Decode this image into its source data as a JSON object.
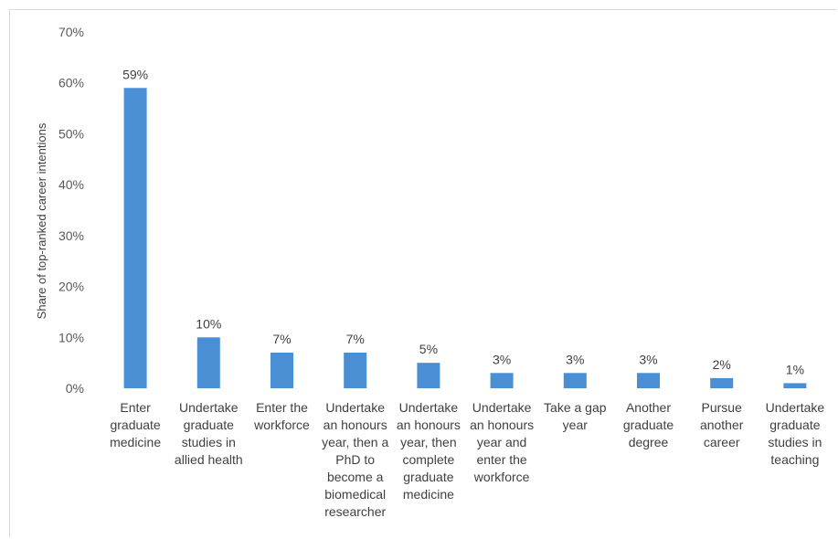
{
  "chart_data": {
    "type": "bar",
    "title": "",
    "ylabel": "Share of top-ranked career intentions",
    "xlabel": "",
    "ylim": [
      0,
      70
    ],
    "yticks": [
      0,
      10,
      20,
      30,
      40,
      50,
      60,
      70
    ],
    "ytick_labels": [
      "0%",
      "10%",
      "20%",
      "30%",
      "40%",
      "50%",
      "60%",
      "70%"
    ],
    "grid": false,
    "bar_color": "#4a8ed4",
    "categories": [
      "Enter graduate medicine",
      "Undertake graduate studies in allied health",
      "Enter the workforce",
      "Undertake an honours year, then a PhD to become a biomedical researcher",
      "Undertake an honours year, then complete graduate medicine",
      "Undertake an honours year and enter the workforce",
      "Take a gap year",
      "Another graduate degree",
      "Pursue another career",
      "Undertake graduate studies in teaching"
    ],
    "values": [
      59,
      10,
      7,
      7,
      5,
      3,
      3,
      3,
      2,
      1
    ],
    "data_labels": [
      "59%",
      "10%",
      "7%",
      "7%",
      "5%",
      "3%",
      "3%",
      "3%",
      "2%",
      "1%"
    ]
  }
}
